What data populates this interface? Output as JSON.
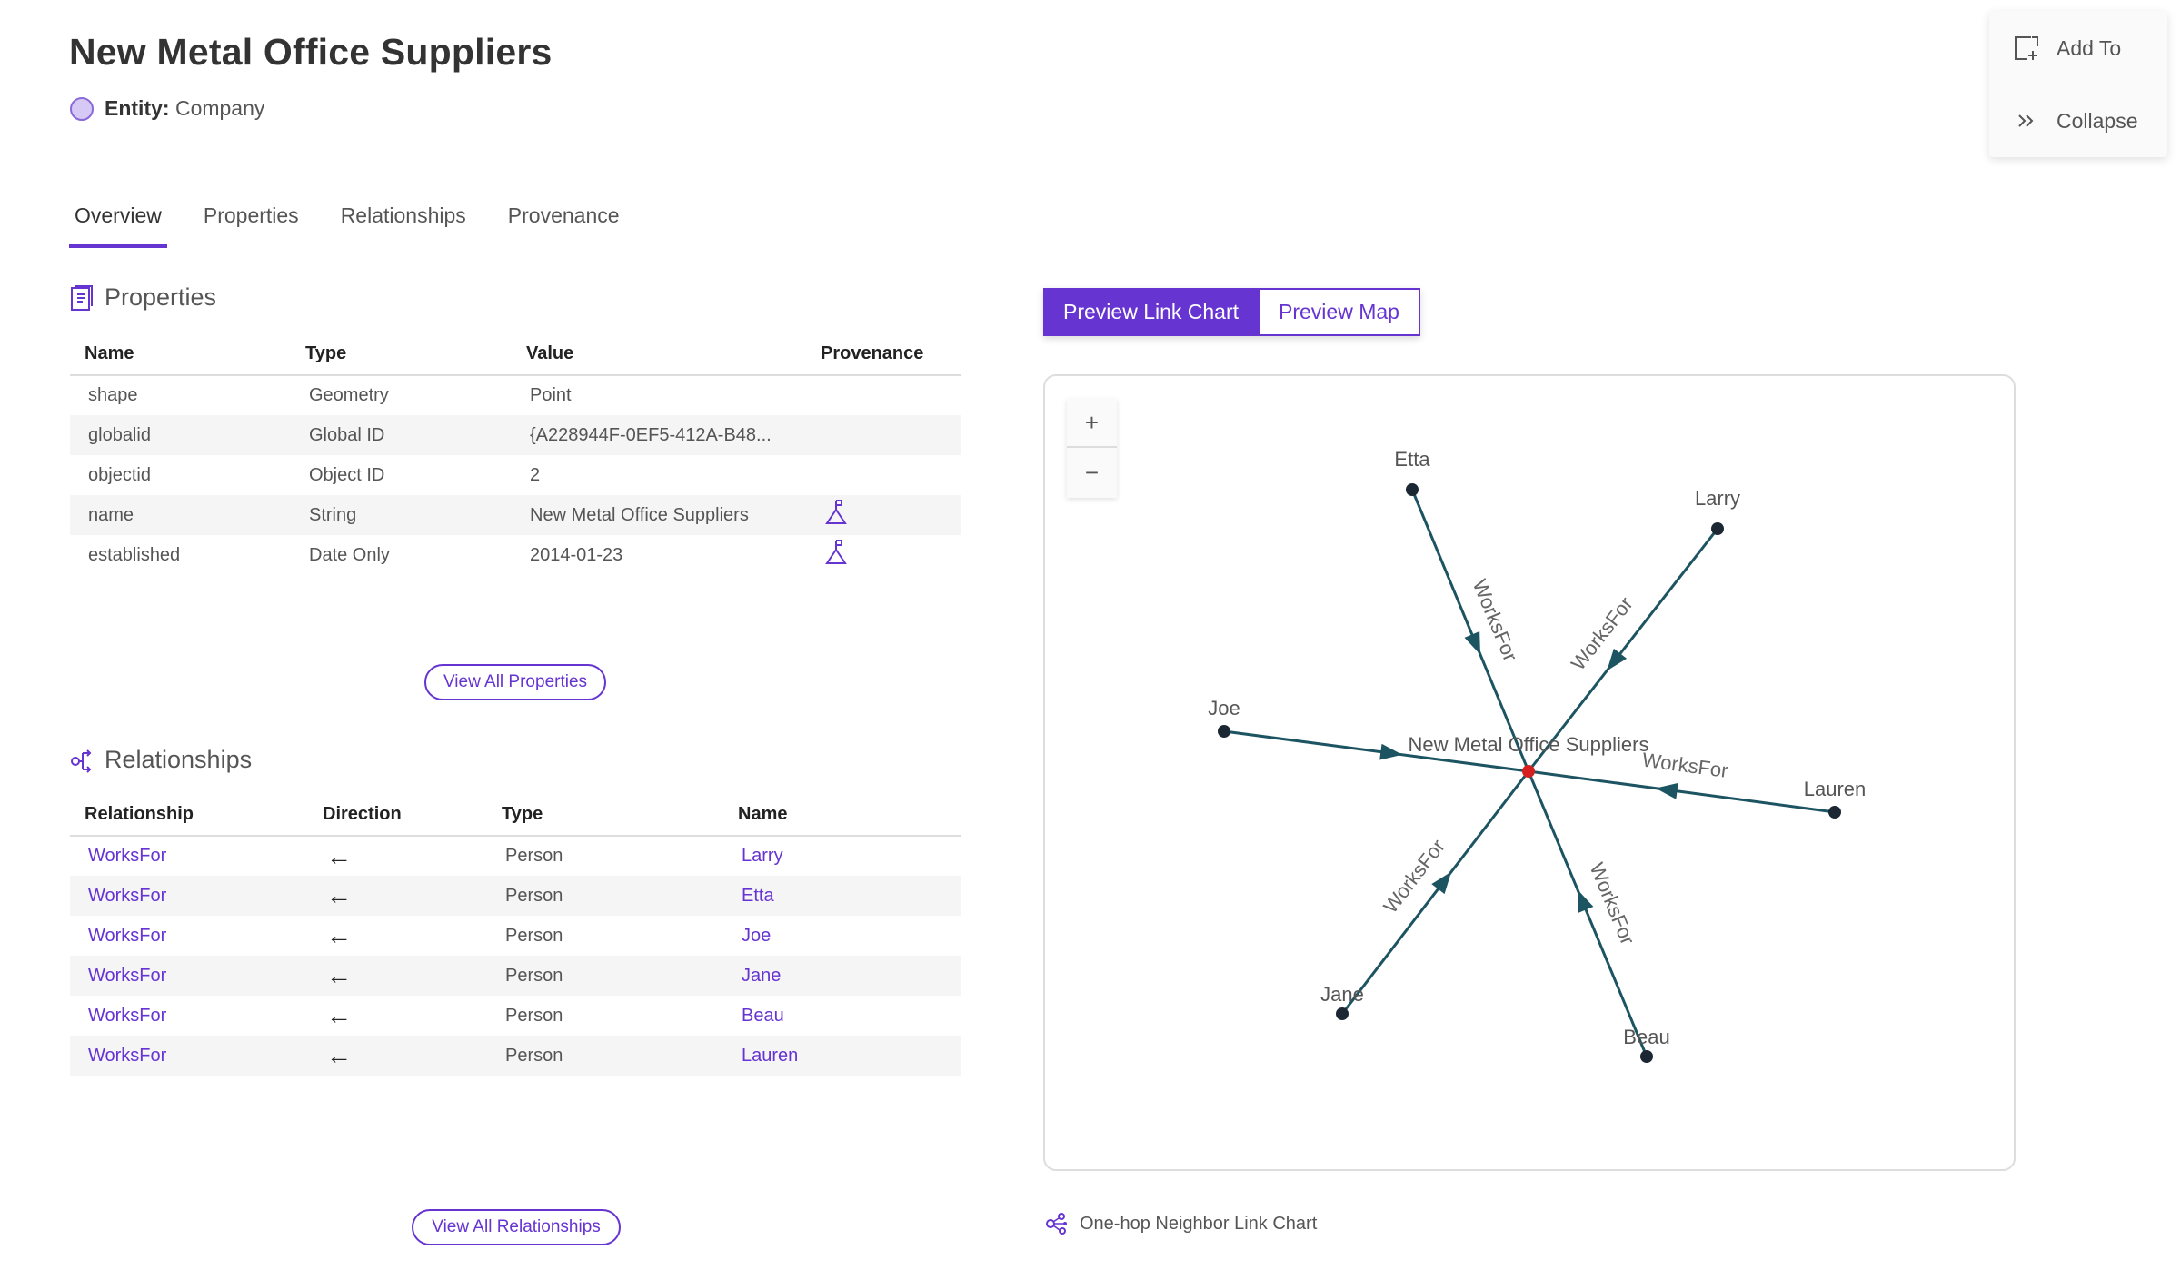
{
  "header": {
    "title": "New Metal Office Suppliers",
    "entity_label": "Entity:",
    "entity_value": "Company"
  },
  "tabs": [
    {
      "label": "Overview",
      "active": true
    },
    {
      "label": "Properties"
    },
    {
      "label": "Relationships"
    },
    {
      "label": "Provenance"
    }
  ],
  "side_actions": {
    "add_to": "Add To",
    "collapse": "Collapse"
  },
  "properties": {
    "heading": "Properties",
    "columns": [
      "Name",
      "Type",
      "Value",
      "Provenance"
    ],
    "rows": [
      {
        "name": "shape",
        "type": "Geometry",
        "value": "Point",
        "provenance": false
      },
      {
        "name": "globalid",
        "type": "Global ID",
        "value": "{A228944F-0EF5-412A-B48...",
        "provenance": false
      },
      {
        "name": "objectid",
        "type": "Object ID",
        "value": "2",
        "provenance": false
      },
      {
        "name": "name",
        "type": "String",
        "value": "New Metal Office Suppliers",
        "provenance": true
      },
      {
        "name": "established",
        "type": "Date Only",
        "value": "2014-01-23",
        "provenance": true
      }
    ],
    "view_all": "View All Properties"
  },
  "relationships": {
    "heading": "Relationships",
    "columns": [
      "Relationship",
      "Direction",
      "Type",
      "Name"
    ],
    "rows": [
      {
        "relationship": "WorksFor",
        "direction": "←",
        "type": "Person",
        "name": "Larry"
      },
      {
        "relationship": "WorksFor",
        "direction": "←",
        "type": "Person",
        "name": "Etta"
      },
      {
        "relationship": "WorksFor",
        "direction": "←",
        "type": "Person",
        "name": "Joe"
      },
      {
        "relationship": "WorksFor",
        "direction": "←",
        "type": "Person",
        "name": "Jane"
      },
      {
        "relationship": "WorksFor",
        "direction": "←",
        "type": "Person",
        "name": "Beau"
      },
      {
        "relationship": "WorksFor",
        "direction": "←",
        "type": "Person",
        "name": "Lauren"
      }
    ],
    "view_all": "View All Relationships"
  },
  "preview": {
    "link_chart_label": "Preview Link Chart",
    "map_label": "Preview Map",
    "selected": "Preview Link Chart",
    "zoom_in": "+",
    "zoom_out": "−",
    "footer": "One-hop Neighbor Link Chart",
    "graph": {
      "center": "New Metal Office Suppliers",
      "neighbors": [
        {
          "name": "Etta",
          "edge_label": "WorksFor"
        },
        {
          "name": "Larry",
          "edge_label": "WorksFor"
        },
        {
          "name": "Joe",
          "edge_label": ""
        },
        {
          "name": "Lauren",
          "edge_label": "WorksFor"
        },
        {
          "name": "Jane",
          "edge_label": "WorksFor"
        },
        {
          "name": "Beau",
          "edge_label": "WorksFor"
        }
      ],
      "colors": {
        "edge": "#1d5462",
        "node": "#1b2733",
        "center_node": "#d42020",
        "accent": "#6634d1"
      }
    }
  }
}
